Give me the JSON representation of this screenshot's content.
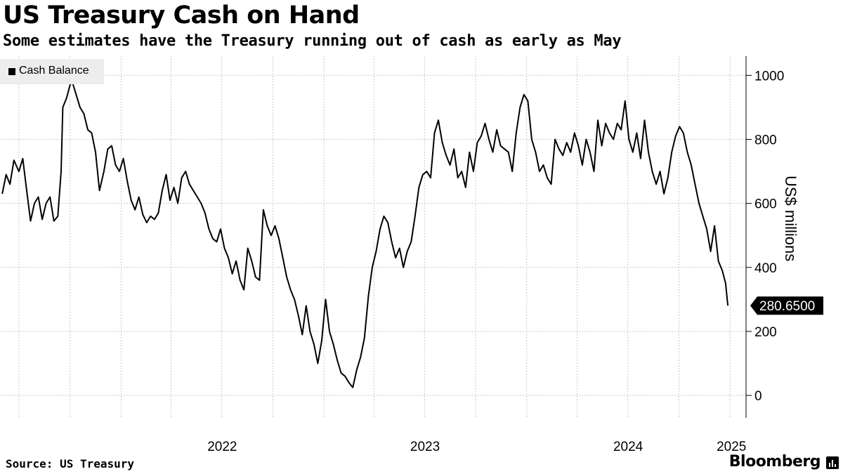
{
  "title": "US Treasury Cash on Hand",
  "subtitle": "Some estimates have the Treasury running out of cash as early as May",
  "source": "Source: US Treasury",
  "brand": "Bloomberg",
  "brand_icon": "bloomberg-terminal-icon",
  "colors": {
    "line": "#000000",
    "grid": "#c8c8c8",
    "legend_bg": "#ededed",
    "label_bg": "#000000"
  },
  "chart_data": {
    "type": "line",
    "title": "US Treasury Cash on Hand",
    "subtitle": "Some estimates have the Treasury running out of cash as early as May",
    "ylabel": "US$ millions",
    "xlabel": "",
    "ylim": [
      -70,
      1060
    ],
    "yticks": [
      0,
      200,
      400,
      600,
      800,
      1000
    ],
    "ytick_labels": [
      "0",
      "200",
      "400",
      "600",
      "800",
      "1000"
    ],
    "xticks": [
      "2022",
      "2023",
      "2024",
      "2025"
    ],
    "grid": true,
    "legend_position": "top-left",
    "legend": [
      "Cash Balance"
    ],
    "last_value_label": "280.6500",
    "series": [
      {
        "name": "Cash Balance",
        "points": [
          [
            "2021-06-01",
            630
          ],
          [
            "2021-06-08",
            690
          ],
          [
            "2021-06-15",
            660
          ],
          [
            "2021-06-22",
            735
          ],
          [
            "2021-07-01",
            700
          ],
          [
            "2021-07-08",
            740
          ],
          [
            "2021-07-15",
            640
          ],
          [
            "2021-07-22",
            545
          ],
          [
            "2021-07-29",
            600
          ],
          [
            "2021-08-05",
            620
          ],
          [
            "2021-08-12",
            550
          ],
          [
            "2021-08-19",
            600
          ],
          [
            "2021-08-26",
            620
          ],
          [
            "2021-09-02",
            545
          ],
          [
            "2021-09-09",
            560
          ],
          [
            "2021-09-15",
            700
          ],
          [
            "2021-09-18",
            900
          ],
          [
            "2021-09-25",
            930
          ],
          [
            "2021-10-01",
            970
          ],
          [
            "2021-10-05",
            980
          ],
          [
            "2021-10-12",
            940
          ],
          [
            "2021-10-19",
            900
          ],
          [
            "2021-10-26",
            880
          ],
          [
            "2021-11-02",
            830
          ],
          [
            "2021-11-09",
            820
          ],
          [
            "2021-11-16",
            760
          ],
          [
            "2021-11-23",
            640
          ],
          [
            "2021-12-01",
            700
          ],
          [
            "2021-12-08",
            770
          ],
          [
            "2021-12-15",
            780
          ],
          [
            "2021-12-22",
            720
          ],
          [
            "2021-12-29",
            700
          ],
          [
            "2022-01-05",
            740
          ],
          [
            "2022-01-12",
            670
          ],
          [
            "2022-01-19",
            610
          ],
          [
            "2022-01-26",
            580
          ],
          [
            "2022-02-02",
            620
          ],
          [
            "2022-02-09",
            565
          ],
          [
            "2022-02-16",
            540
          ],
          [
            "2022-02-23",
            560
          ],
          [
            "2022-03-02",
            550
          ],
          [
            "2022-03-09",
            570
          ],
          [
            "2022-03-16",
            640
          ],
          [
            "2022-03-23",
            690
          ],
          [
            "2022-03-30",
            610
          ],
          [
            "2022-04-06",
            650
          ],
          [
            "2022-04-13",
            600
          ],
          [
            "2022-04-20",
            680
          ],
          [
            "2022-04-27",
            700
          ],
          [
            "2022-05-04",
            660
          ],
          [
            "2022-05-11",
            640
          ],
          [
            "2022-05-18",
            620
          ],
          [
            "2022-05-25",
            600
          ],
          [
            "2022-06-01",
            570
          ],
          [
            "2022-06-08",
            520
          ],
          [
            "2022-06-15",
            490
          ],
          [
            "2022-06-22",
            480
          ],
          [
            "2022-06-29",
            520
          ],
          [
            "2022-07-06",
            460
          ],
          [
            "2022-07-13",
            430
          ],
          [
            "2022-07-20",
            380
          ],
          [
            "2022-07-27",
            420
          ],
          [
            "2022-08-03",
            360
          ],
          [
            "2022-08-10",
            330
          ],
          [
            "2022-08-17",
            460
          ],
          [
            "2022-08-24",
            420
          ],
          [
            "2022-08-31",
            370
          ],
          [
            "2022-09-07",
            360
          ],
          [
            "2022-09-14",
            580
          ],
          [
            "2022-09-21",
            530
          ],
          [
            "2022-09-28",
            500
          ],
          [
            "2022-10-05",
            530
          ],
          [
            "2022-10-12",
            490
          ],
          [
            "2022-10-19",
            430
          ],
          [
            "2022-10-26",
            370
          ],
          [
            "2022-11-02",
            330
          ],
          [
            "2022-11-09",
            300
          ],
          [
            "2022-11-16",
            250
          ],
          [
            "2022-11-23",
            190
          ],
          [
            "2022-11-30",
            280
          ],
          [
            "2022-12-07",
            200
          ],
          [
            "2022-12-14",
            160
          ],
          [
            "2022-12-21",
            100
          ],
          [
            "2022-12-28",
            170
          ],
          [
            "2023-01-04",
            300
          ],
          [
            "2023-01-11",
            200
          ],
          [
            "2023-01-18",
            160
          ],
          [
            "2023-01-25",
            110
          ],
          [
            "2023-02-01",
            70
          ],
          [
            "2023-02-08",
            60
          ],
          [
            "2023-02-15",
            40
          ],
          [
            "2023-02-22",
            25
          ],
          [
            "2023-03-01",
            80
          ],
          [
            "2023-03-08",
            120
          ],
          [
            "2023-03-15",
            180
          ],
          [
            "2023-03-22",
            310
          ],
          [
            "2023-03-29",
            400
          ],
          [
            "2023-04-05",
            450
          ],
          [
            "2023-04-12",
            520
          ],
          [
            "2023-04-19",
            560
          ],
          [
            "2023-04-26",
            540
          ],
          [
            "2023-05-03",
            480
          ],
          [
            "2023-05-10",
            430
          ],
          [
            "2023-05-17",
            460
          ],
          [
            "2023-05-24",
            400
          ],
          [
            "2023-05-31",
            450
          ],
          [
            "2023-06-07",
            480
          ],
          [
            "2023-06-14",
            560
          ],
          [
            "2023-06-21",
            650
          ],
          [
            "2023-06-28",
            690
          ],
          [
            "2023-07-05",
            700
          ],
          [
            "2023-07-12",
            680
          ],
          [
            "2023-07-19",
            820
          ],
          [
            "2023-07-26",
            860
          ],
          [
            "2023-08-02",
            790
          ],
          [
            "2023-08-09",
            750
          ],
          [
            "2023-08-16",
            720
          ],
          [
            "2023-08-23",
            770
          ],
          [
            "2023-08-30",
            680
          ],
          [
            "2023-09-06",
            700
          ],
          [
            "2023-09-13",
            650
          ],
          [
            "2023-09-20",
            760
          ],
          [
            "2023-09-27",
            700
          ],
          [
            "2023-10-04",
            790
          ],
          [
            "2023-10-11",
            810
          ],
          [
            "2023-10-18",
            850
          ],
          [
            "2023-10-25",
            800
          ],
          [
            "2023-11-01",
            760
          ],
          [
            "2023-11-08",
            830
          ],
          [
            "2023-11-15",
            780
          ],
          [
            "2023-11-22",
            770
          ],
          [
            "2023-11-29",
            760
          ],
          [
            "2023-12-06",
            700
          ],
          [
            "2023-12-13",
            820
          ],
          [
            "2023-12-20",
            900
          ],
          [
            "2023-12-27",
            940
          ],
          [
            "2024-01-03",
            920
          ],
          [
            "2024-01-10",
            800
          ],
          [
            "2024-01-17",
            760
          ],
          [
            "2024-01-24",
            700
          ],
          [
            "2024-01-31",
            720
          ],
          [
            "2024-02-07",
            680
          ],
          [
            "2024-02-14",
            660
          ],
          [
            "2024-02-21",
            800
          ],
          [
            "2024-02-28",
            770
          ],
          [
            "2024-03-06",
            750
          ],
          [
            "2024-03-13",
            790
          ],
          [
            "2024-03-20",
            760
          ],
          [
            "2024-03-27",
            820
          ],
          [
            "2024-04-03",
            780
          ],
          [
            "2024-04-10",
            720
          ],
          [
            "2024-04-17",
            800
          ],
          [
            "2024-04-24",
            760
          ],
          [
            "2024-05-01",
            700
          ],
          [
            "2024-05-08",
            860
          ],
          [
            "2024-05-15",
            780
          ],
          [
            "2024-05-22",
            850
          ],
          [
            "2024-05-29",
            820
          ],
          [
            "2024-06-05",
            800
          ],
          [
            "2024-06-12",
            850
          ],
          [
            "2024-06-19",
            830
          ],
          [
            "2024-06-26",
            920
          ],
          [
            "2024-07-03",
            800
          ],
          [
            "2024-07-10",
            760
          ],
          [
            "2024-07-17",
            820
          ],
          [
            "2024-07-24",
            740
          ],
          [
            "2024-07-31",
            860
          ],
          [
            "2024-08-07",
            760
          ],
          [
            "2024-08-14",
            700
          ],
          [
            "2024-08-21",
            660
          ],
          [
            "2024-08-28",
            700
          ],
          [
            "2024-09-04",
            630
          ],
          [
            "2024-09-11",
            680
          ],
          [
            "2024-09-18",
            760
          ],
          [
            "2024-09-25",
            810
          ],
          [
            "2024-10-02",
            840
          ],
          [
            "2024-10-09",
            820
          ],
          [
            "2024-10-16",
            760
          ],
          [
            "2024-10-23",
            720
          ],
          [
            "2024-10-30",
            660
          ],
          [
            "2024-11-06",
            600
          ],
          [
            "2024-11-13",
            560
          ],
          [
            "2024-11-20",
            520
          ],
          [
            "2024-11-27",
            450
          ],
          [
            "2024-12-04",
            530
          ],
          [
            "2024-12-11",
            420
          ],
          [
            "2024-12-18",
            390
          ],
          [
            "2024-12-24",
            350
          ],
          [
            "2024-12-28",
            280.65
          ]
        ]
      }
    ]
  }
}
